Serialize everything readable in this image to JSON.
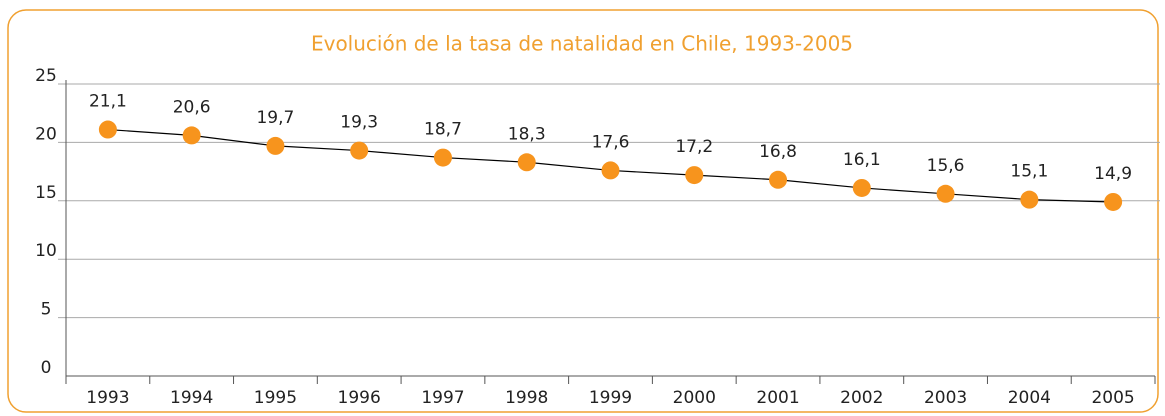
{
  "chart_data": {
    "type": "line",
    "title": "Evolución de la tasa de natalidad en Chile, 1993-2005",
    "categories": [
      "1993",
      "1994",
      "1995",
      "1996",
      "1997",
      "1998",
      "1999",
      "2000",
      "2001",
      "2002",
      "2003",
      "2004",
      "2005"
    ],
    "values": [
      21.1,
      20.6,
      19.7,
      19.3,
      18.7,
      18.3,
      17.6,
      17.2,
      16.8,
      16.1,
      15.6,
      15.1,
      14.9
    ],
    "value_labels": [
      "21,1",
      "20,6",
      "19,7",
      "19,3",
      "18,7",
      "18,3",
      "17,6",
      "17,2",
      "16,8",
      "16,1",
      "15,6",
      "15,1",
      "14,9"
    ],
    "color": "#f7941d",
    "line_color": "#000000",
    "ylim": [
      0,
      25
    ],
    "yticks": [
      0,
      5,
      10,
      15,
      20,
      25
    ],
    "grid": true
  }
}
